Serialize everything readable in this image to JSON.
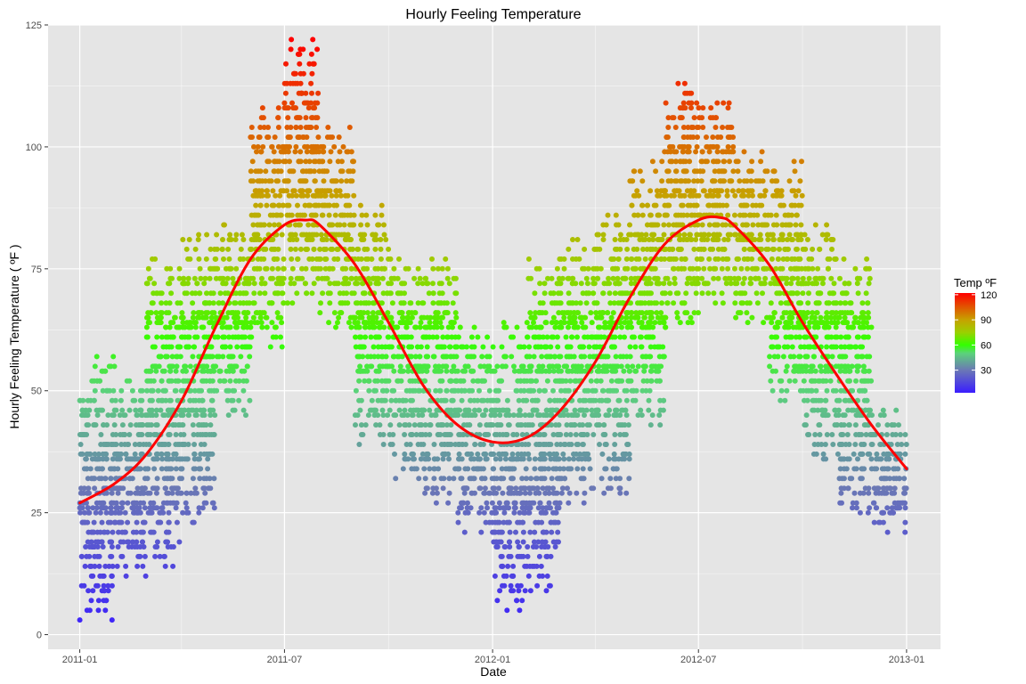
{
  "chart_data": {
    "type": "scatter",
    "title": "Hourly Feeling Temperature",
    "xlabel": "Date",
    "ylabel": "Hourly Feeling Temperature ( ºF )",
    "x_range": [
      "2010-12-04",
      "2013-01-31"
    ],
    "x_ticks": [
      "2011-01-01",
      "2011-07-01",
      "2012-01-01",
      "2012-07-01",
      "2013-01-01"
    ],
    "x_tick_labels": [
      "2011-01",
      "2011-07",
      "2012-01",
      "2012-07",
      "2013-01"
    ],
    "x_minor_ticks": [
      "2011-04-01",
      "2011-10-01",
      "2012-04-01",
      "2012-10-01"
    ],
    "ylim": [
      -3,
      125
    ],
    "y_ticks": [
      0,
      25,
      50,
      75,
      100,
      125
    ],
    "y_minor_ticks": [
      12.5,
      37.5,
      62.5,
      87.5,
      112.5
    ],
    "grid": true,
    "colors": {
      "panel_background": "#e5e5e5",
      "gridline": "#ffffff",
      "trend_line": "#ff0000",
      "color_scale": [
        "#3a1dff",
        "#6b78b5",
        "#5bd27b",
        "#33ff00",
        "#9bd000",
        "#c6a200",
        "#ff0000"
      ],
      "color_scale_stops": [
        0,
        30,
        50,
        60,
        75,
        90,
        122
      ]
    },
    "legend": {
      "title": "Temp ºF",
      "position": "right",
      "range": [
        3,
        122
      ],
      "ticks": [
        30,
        60,
        90,
        120
      ]
    },
    "series": [
      {
        "type": "scatter",
        "value_levels": [
          3,
          5,
          7,
          9,
          10,
          12,
          14,
          16,
          18,
          19,
          21,
          23,
          25,
          26,
          27,
          29,
          30,
          32,
          34,
          36,
          37,
          39,
          41,
          43,
          45,
          46,
          48,
          50,
          52,
          54,
          55,
          57,
          59,
          61,
          63,
          64,
          65,
          66,
          68,
          70,
          72,
          73,
          75,
          77,
          79,
          81,
          82,
          84,
          86,
          88,
          90,
          91,
          93,
          95,
          97,
          99,
          100,
          102,
          104,
          106,
          108,
          109,
          111,
          113,
          115,
          117,
          119,
          120,
          122
        ],
        "monthly_bands": [
          {
            "month": "2011-01",
            "min": 3,
            "max": 57
          },
          {
            "month": "2011-02",
            "min": 12,
            "max": 52
          },
          {
            "month": "2011-03",
            "min": 14,
            "max": 77
          },
          {
            "month": "2011-04",
            "min": 23,
            "max": 82
          },
          {
            "month": "2011-05",
            "min": 45,
            "max": 84
          },
          {
            "month": "2011-06",
            "min": 59,
            "max": 108
          },
          {
            "month": "2011-07",
            "min": 68,
            "max": 122
          },
          {
            "month": "2011-08",
            "min": 63,
            "max": 104
          },
          {
            "month": "2011-09",
            "min": 39,
            "max": 88
          },
          {
            "month": "2011-10",
            "min": 32,
            "max": 77
          },
          {
            "month": "2011-11",
            "min": 27,
            "max": 77
          },
          {
            "month": "2011-12",
            "min": 21,
            "max": 63
          },
          {
            "month": "2012-01",
            "min": 5,
            "max": 64
          },
          {
            "month": "2012-02",
            "min": 9,
            "max": 77
          },
          {
            "month": "2012-03",
            "min": 27,
            "max": 81
          },
          {
            "month": "2012-04",
            "min": 28,
            "max": 86
          },
          {
            "month": "2012-05",
            "min": 43,
            "max": 97
          },
          {
            "month": "2012-06",
            "min": 63,
            "max": 113
          },
          {
            "month": "2012-07",
            "min": 68,
            "max": 110
          },
          {
            "month": "2012-08",
            "min": 64,
            "max": 99
          },
          {
            "month": "2012-09",
            "min": 48,
            "max": 97
          },
          {
            "month": "2012-10",
            "min": 36,
            "max": 84
          },
          {
            "month": "2012-11",
            "min": 25,
            "max": 77
          },
          {
            "month": "2012-12",
            "min": 21,
            "max": 46
          }
        ]
      },
      {
        "type": "line",
        "x": [
          "2011-01-01",
          "2011-02-01",
          "2011-03-01",
          "2011-04-01",
          "2011-05-01",
          "2011-06-01",
          "2011-07-01",
          "2011-07-20",
          "2011-08-01",
          "2011-09-01",
          "2011-10-01",
          "2011-11-01",
          "2011-12-01",
          "2012-01-01",
          "2012-02-01",
          "2012-03-01",
          "2012-04-01",
          "2012-05-01",
          "2012-06-01",
          "2012-07-01",
          "2012-07-20",
          "2012-08-01",
          "2012-09-01",
          "2012-10-01",
          "2012-11-01",
          "2012-12-01",
          "2013-01-01"
        ],
        "y": [
          27,
          31,
          37,
          48,
          63,
          77,
          84,
          85,
          84,
          76,
          64,
          51,
          43,
          39.5,
          40.5,
          46,
          56,
          69,
          80,
          85,
          85.5,
          84,
          76,
          64,
          53,
          43,
          34
        ]
      }
    ]
  }
}
